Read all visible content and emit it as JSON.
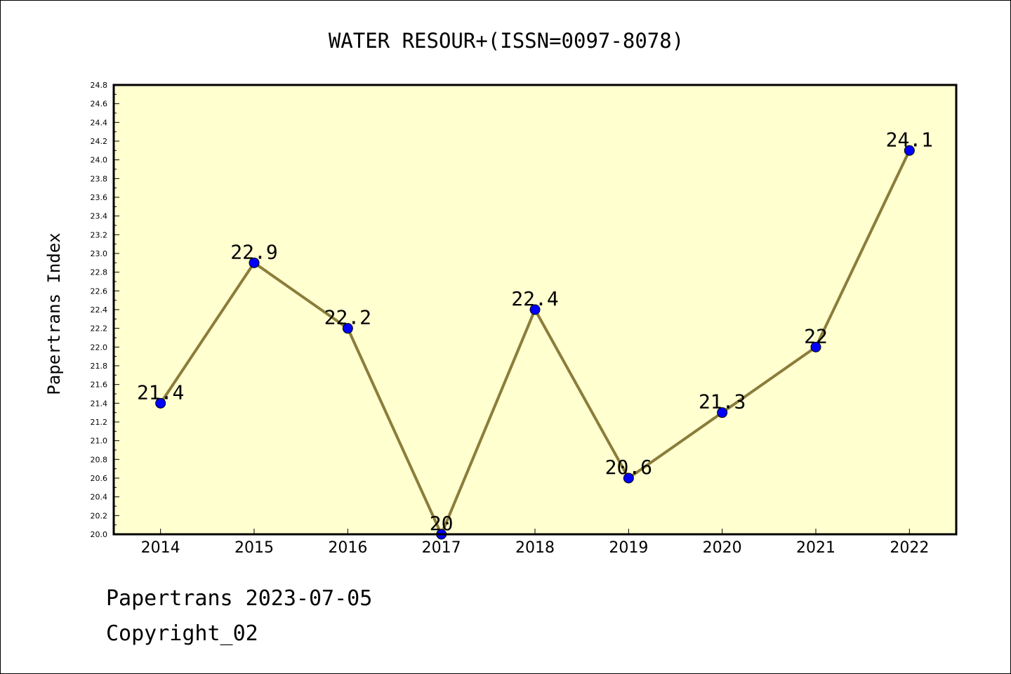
{
  "chart_data": {
    "type": "line",
    "title": "WATER RESOUR+(ISSN=0097-8078)",
    "xlabel": "",
    "ylabel": "Papertrans Index",
    "categories": [
      "2014",
      "2015",
      "2016",
      "2017",
      "2018",
      "2019",
      "2020",
      "2021",
      "2022"
    ],
    "values": [
      21.4,
      22.9,
      22.2,
      20,
      22.4,
      20.6,
      21.3,
      22,
      24.1
    ],
    "data_labels": [
      "21.4",
      "22.9",
      "22.2",
      "20",
      "22.4",
      "20.6",
      "21.3",
      "22",
      "24.1"
    ],
    "ylim": [
      20.0,
      24.8
    ],
    "yticks": [
      "20.0",
      "20.2",
      "20.4",
      "20.6",
      "20.8",
      "21.0",
      "21.2",
      "21.4",
      "21.6",
      "21.8",
      "22.0",
      "22.2",
      "22.4",
      "22.6",
      "22.8",
      "23.0",
      "23.2",
      "23.4",
      "23.6",
      "23.8",
      "24.0",
      "24.2",
      "24.4",
      "24.6",
      "24.8"
    ],
    "grid": false,
    "legend": "none",
    "colors": {
      "plot_background": "#ffffd0",
      "line": "#8b7d3a",
      "marker": "#0000ff",
      "marker_edge": "#000000",
      "axes": "#000000"
    }
  },
  "footer": {
    "line1": "Papertrans 2023-07-05",
    "line2": "Copyright_02"
  }
}
